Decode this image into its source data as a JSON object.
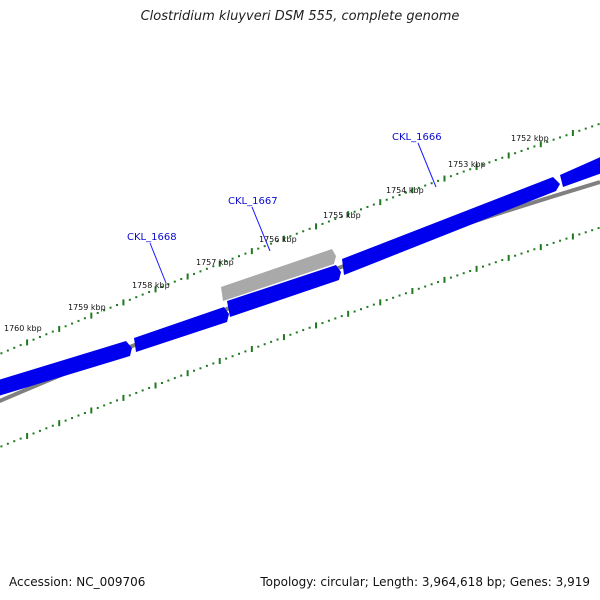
{
  "title": "Clostridium kluyveri DSM 555, complete genome",
  "footer": {
    "accession": "Accession: NC_009706",
    "topology": "Topology: circular; Length: 3,964,618 bp; Genes: 3,919"
  },
  "ticks": [
    {
      "label": "1752 kbp"
    },
    {
      "label": "1753 kbp"
    },
    {
      "label": "1754 kbp"
    },
    {
      "label": "1755 kbp"
    },
    {
      "label": "1756 kbp"
    },
    {
      "label": "1757 kbp"
    },
    {
      "label": "1758 kbp"
    },
    {
      "label": "1759 kbp"
    },
    {
      "label": "1760 kbp"
    }
  ],
  "genes": [
    {
      "name": "CKL_1666",
      "strand": "forward",
      "color": "#0000ee"
    },
    {
      "name": "CKL_1667",
      "strand": "forward",
      "color": "#a9a9a9"
    },
    {
      "name": "CKL_1668",
      "strand": "forward",
      "color": "#0000ee"
    }
  ],
  "colors": {
    "gene": "#0000ee",
    "pseudogene": "#a9a9a9",
    "backbone": "#808080",
    "ticks": "#1f7a1f",
    "gene_label": "#0a0acc"
  }
}
